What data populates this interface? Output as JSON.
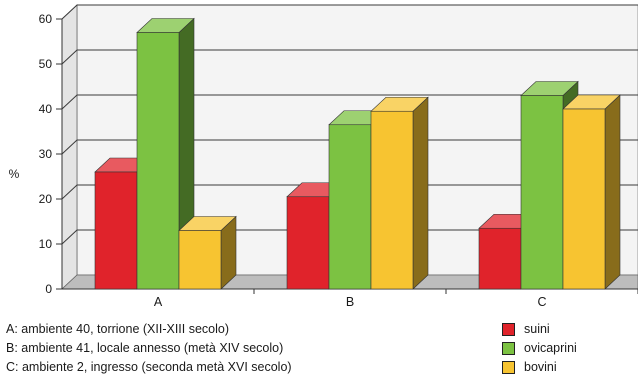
{
  "colors": {
    "suini": "#e0232b",
    "ovicaprini": "#7cc242",
    "bovini": "#f7c431",
    "wall": "#f4f4f4",
    "grid": "#3a3a3a"
  },
  "notes": [
    "A: ambiente 40, torrione (XII-XIII secolo)",
    "B: ambiente 41, locale annesso (metà XIV secolo)",
    "C: ambiente 2, ingresso (seconda metà XVI secolo)"
  ],
  "chart_data": {
    "type": "bar",
    "style": "3d-clustered-column",
    "ylabel": "%",
    "ylim": [
      0,
      60
    ],
    "yticks": [
      "0",
      "10",
      "20",
      "30",
      "40",
      "50",
      "60"
    ],
    "grid": true,
    "categories": [
      "A",
      "B",
      "C"
    ],
    "series": [
      {
        "name": "suini",
        "values": [
          26,
          20.5,
          13.5
        ]
      },
      {
        "name": "ovicaprini",
        "values": [
          57,
          36.5,
          43
        ]
      },
      {
        "name": "bovini",
        "values": [
          13,
          39.5,
          40
        ]
      }
    ],
    "legend_position": "bottom-right"
  }
}
